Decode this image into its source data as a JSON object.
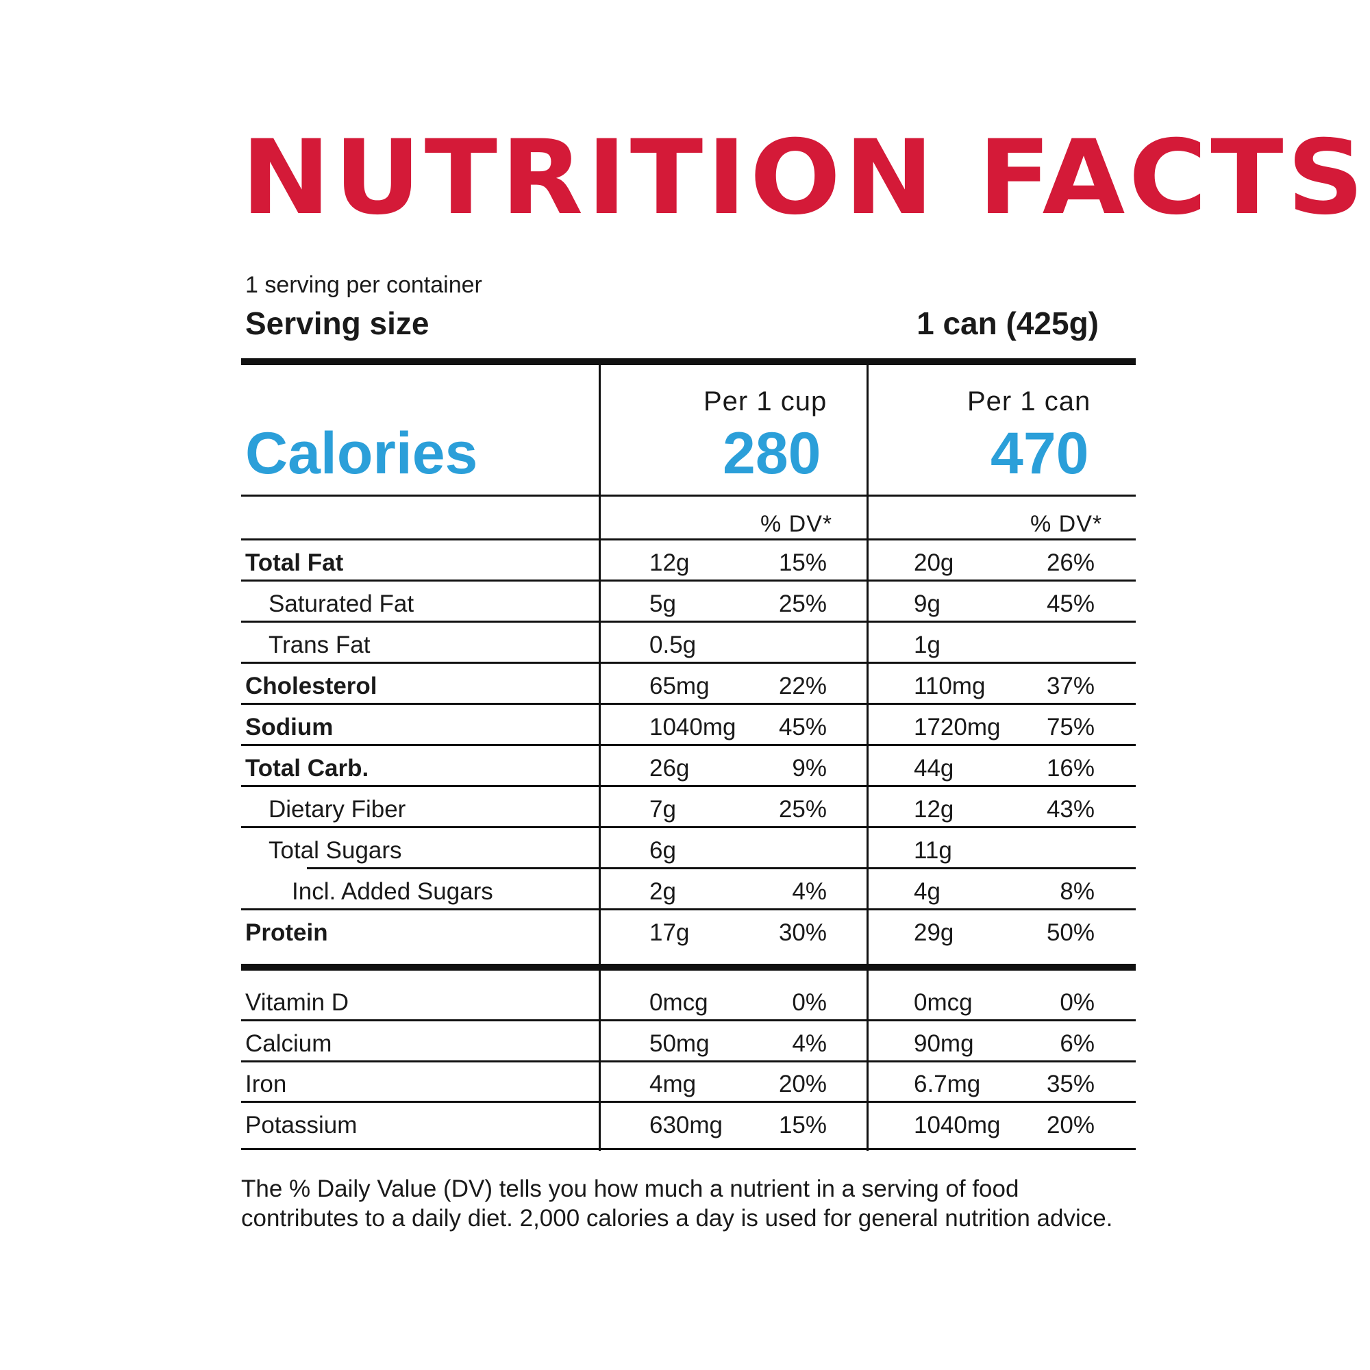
{
  "title": "NUTRITION FACTS",
  "colors": {
    "title": "#d41a38",
    "calories": "#2b9fd9",
    "text": "#1a1a1a",
    "rules": "#111111"
  },
  "servings_per_container": "1 serving per container",
  "serving_size_label": "Serving size",
  "serving_size_value": "1 can (425g)",
  "columns": {
    "col1_header": "Per 1 cup",
    "col2_header": "Per 1 can",
    "dv_header": "% DV*"
  },
  "calories": {
    "label": "Calories",
    "per_cup": "280",
    "per_can": "470"
  },
  "nutrients": [
    {
      "name": "Total Fat",
      "cup_amount": "12g",
      "cup_dv": "15%",
      "can_amount": "20g",
      "can_dv": "26%"
    },
    {
      "name": "Saturated Fat",
      "cup_amount": "5g",
      "cup_dv": "25%",
      "can_amount": "9g",
      "can_dv": "45%"
    },
    {
      "name": "Trans Fat",
      "cup_amount": "0.5g",
      "cup_dv": "",
      "can_amount": "1g",
      "can_dv": ""
    },
    {
      "name": "Cholesterol",
      "cup_amount": "65mg",
      "cup_dv": "22%",
      "can_amount": "110mg",
      "can_dv": "37%"
    },
    {
      "name": "Sodium",
      "cup_amount": "1040mg",
      "cup_dv": "45%",
      "can_amount": "1720mg",
      "can_dv": "75%"
    },
    {
      "name": "Total Carb.",
      "cup_amount": "26g",
      "cup_dv": "9%",
      "can_amount": "44g",
      "can_dv": "16%"
    },
    {
      "name": "Dietary Fiber",
      "cup_amount": "7g",
      "cup_dv": "25%",
      "can_amount": "12g",
      "can_dv": "43%"
    },
    {
      "name": "Total Sugars",
      "cup_amount": "6g",
      "cup_dv": "",
      "can_amount": "11g",
      "can_dv": ""
    },
    {
      "name": "Incl. Added Sugars",
      "cup_amount": "2g",
      "cup_dv": "4%",
      "can_amount": "4g",
      "can_dv": "8%"
    },
    {
      "name": "Protein",
      "cup_amount": "17g",
      "cup_dv": "30%",
      "can_amount": "29g",
      "can_dv": "50%"
    }
  ],
  "vitamins": [
    {
      "name": "Vitamin D",
      "cup_amount": "0mcg",
      "cup_dv": "0%",
      "can_amount": "0mcg",
      "can_dv": "0%"
    },
    {
      "name": "Calcium",
      "cup_amount": "50mg",
      "cup_dv": "4%",
      "can_amount": "90mg",
      "can_dv": "6%"
    },
    {
      "name": "Iron",
      "cup_amount": "4mg",
      "cup_dv": "20%",
      "can_amount": "6.7mg",
      "can_dv": "35%"
    },
    {
      "name": "Potassium",
      "cup_amount": "630mg",
      "cup_dv": "15%",
      "can_amount": "1040mg",
      "can_dv": "20%"
    }
  ],
  "footnote_line1": "The % Daily Value (DV) tells you how much a nutrient in a serving of food",
  "footnote_line2": "contributes to a daily diet. 2,000 calories a day is used for general nutrition advice."
}
